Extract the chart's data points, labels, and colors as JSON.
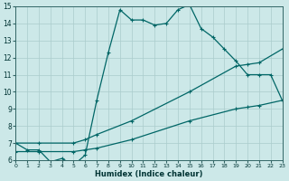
{
  "xlabel": "Humidex (Indice chaleur)",
  "bg_color": "#cce8e8",
  "grid_color_major": "#aacccc",
  "grid_color_minor": "#bbdddd",
  "line_color": "#006666",
  "x_min": 0,
  "x_max": 23,
  "y_min": 6,
  "y_max": 15,
  "line1_x": [
    0,
    1,
    2,
    3,
    4,
    5,
    6,
    7,
    8,
    9,
    10,
    11,
    12,
    13,
    14,
    15,
    16,
    17,
    18,
    19,
    20,
    21,
    22,
    23
  ],
  "line1_y": [
    7.0,
    6.6,
    6.6,
    5.9,
    6.1,
    5.7,
    6.3,
    9.5,
    12.3,
    14.8,
    14.2,
    14.2,
    13.9,
    14.0,
    14.8,
    15.1,
    13.7,
    13.2,
    12.5,
    11.8,
    11.0,
    11.0,
    11.0,
    9.5
  ],
  "line2_x": [
    0,
    2,
    5,
    6,
    7,
    10,
    15,
    19,
    20,
    21,
    23
  ],
  "line2_y": [
    7.0,
    7.0,
    7.0,
    7.2,
    7.5,
    8.3,
    10.0,
    11.5,
    11.6,
    11.7,
    12.5
  ],
  "line3_x": [
    0,
    2,
    5,
    6,
    7,
    10,
    15,
    19,
    20,
    21,
    23
  ],
  "line3_y": [
    6.5,
    6.5,
    6.5,
    6.6,
    6.7,
    7.2,
    8.3,
    9.0,
    9.1,
    9.2,
    9.5
  ]
}
